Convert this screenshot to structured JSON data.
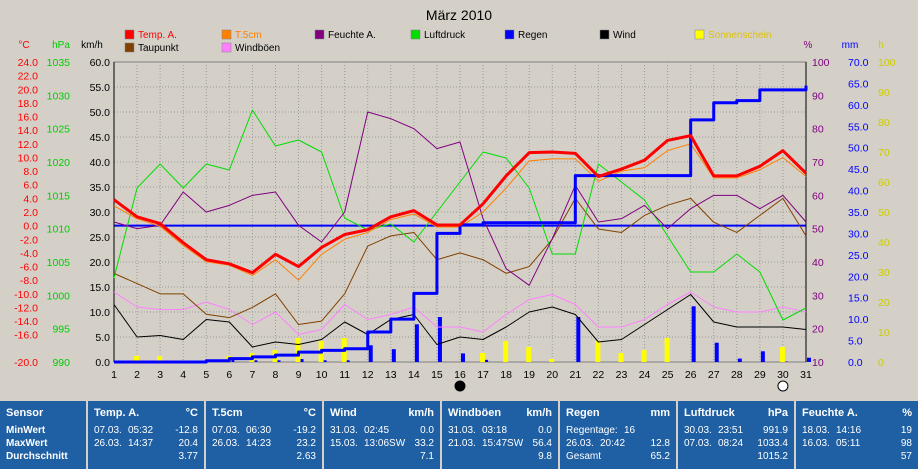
{
  "title": "März 2010",
  "legend": [
    {
      "name": "Temp. A.",
      "color": "#ff0000"
    },
    {
      "name": "T.5cm",
      "color": "#ff8000"
    },
    {
      "name": "Feuchte A.",
      "color": "#800080"
    },
    {
      "name": "Luftdruck",
      "color": "#00dd00"
    },
    {
      "name": "Regen",
      "color": "#0000ff"
    },
    {
      "name": "Wind",
      "color": "#000000"
    },
    {
      "name": "Sonnenschein",
      "color": "#ffff00"
    },
    {
      "name": "Taupunkt",
      "color": "#804000"
    },
    {
      "name": "Windböen",
      "color": "#ff80ff"
    }
  ],
  "axis_units": {
    "temp": "°C",
    "pressure": "hPa",
    "wind": "km/h",
    "humidity": "%",
    "rain": "mm",
    "sun": "h"
  },
  "chart_data": {
    "type": "line",
    "title": "März 2010",
    "x": [
      1,
      2,
      3,
      4,
      5,
      6,
      7,
      8,
      9,
      10,
      11,
      12,
      13,
      14,
      15,
      16,
      17,
      18,
      19,
      20,
      21,
      22,
      23,
      24,
      25,
      26,
      27,
      28,
      29,
      30,
      31
    ],
    "axes": {
      "temp": {
        "label": "°C",
        "ylim": [
          -20,
          24
        ],
        "color": "#ff0000",
        "ticks": [
          "24.0",
          "22.0",
          "20.0",
          "18.0",
          "16.0",
          "14.0",
          "12.0",
          "10.0",
          "8.0",
          "6.0",
          "4.0",
          "2.0",
          "0.0",
          "-2.0",
          "-4.0",
          "-6.0",
          "-8.0",
          "-10.0",
          "-12.0",
          "-14.0",
          "-16.0",
          "",
          "-20.0"
        ]
      },
      "pressure": {
        "label": "hPa",
        "ylim": [
          990,
          1040
        ],
        "color": "#00cc00",
        "ticks": [
          "1035",
          "1030",
          "1025",
          "1020",
          "1015",
          "1010",
          "1005",
          "1000",
          "995",
          "990"
        ]
      },
      "wind": {
        "label": "km/h",
        "ylim": [
          0,
          60
        ],
        "color": "#000000",
        "ticks": [
          "60.0",
          "55.0",
          "50.0",
          "45.0",
          "40.0",
          "35.0",
          "30.0",
          "25.0",
          "20.0",
          "15.0",
          "10.0",
          "5.0",
          "0.0"
        ]
      },
      "humidity": {
        "label": "%",
        "ylim": [
          10,
          100
        ],
        "color": "#800080",
        "ticks": [
          "100",
          "90",
          "80",
          "70",
          "60",
          "50",
          "40",
          "30",
          "20",
          "10"
        ]
      },
      "rain": {
        "label": "mm",
        "ylim": [
          0,
          70
        ],
        "color": "#0000ff",
        "ticks": [
          "70.0",
          "65.0",
          "60.0",
          "55.0",
          "50.0",
          "45.0",
          "40.0",
          "35.0",
          "30.0",
          "25.0",
          "20.0",
          "15.0",
          "10.0",
          "5.0",
          "0.0"
        ]
      },
      "sun": {
        "label": "h",
        "ylim": [
          0,
          100
        ],
        "color": "#cccc00",
        "ticks": [
          "100",
          "90",
          "80",
          "70",
          "60",
          "50",
          "40",
          "30",
          "20",
          "10",
          "0"
        ]
      }
    },
    "series": [
      {
        "name": "Temp. A.",
        "axis": "temp",
        "values": [
          3.8,
          1.3,
          0.3,
          -2.5,
          -5.0,
          -5.6,
          -6.9,
          -4.2,
          -6.0,
          -3.2,
          -1.3,
          -0.6,
          1.3,
          2.2,
          0.1,
          0.1,
          3.2,
          7.3,
          10.7,
          10.8,
          10.6,
          7.2,
          8.3,
          9.6,
          12.5,
          13.2,
          7.3,
          7.3,
          8.7,
          11.0,
          7.7
        ]
      },
      {
        "name": "T.5cm",
        "axis": "temp",
        "values": [
          2.9,
          1.0,
          -0.1,
          -2.9,
          -5.3,
          -5.8,
          -7.3,
          -5.0,
          -8.0,
          -4.2,
          -2.0,
          -1.0,
          0.9,
          1.7,
          -0.2,
          -0.2,
          2.0,
          5.5,
          9.5,
          9.8,
          9.8,
          6.5,
          8.0,
          8.5,
          11.0,
          12.0,
          7.0,
          7.0,
          8.2,
          10.0,
          7.2
        ]
      },
      {
        "name": "Taupunkt",
        "axis": "temp",
        "values": [
          -7.0,
          -8.5,
          -10.0,
          -10.0,
          -13.0,
          -13.5,
          -12.0,
          -10.0,
          -14.5,
          -14.0,
          -10.0,
          -3.0,
          -1.5,
          -1.0,
          -5.0,
          -4.0,
          -5.0,
          -7.0,
          -6.0,
          -2.0,
          4.0,
          -0.5,
          -1.0,
          1.5,
          3.0,
          4.0,
          0.5,
          -1.0,
          1.5,
          4.0,
          -1.5
        ]
      },
      {
        "name": "Luftdruck",
        "axis": "pressure",
        "values": [
          1004,
          1019,
          1023,
          1019,
          1023,
          1022,
          1032,
          1026,
          1027,
          1025,
          1014,
          1012,
          1013,
          1010,
          1015,
          1020,
          1025,
          1024,
          1019,
          1008,
          1008,
          1023,
          1020,
          1017,
          1011,
          1005,
          1005,
          1008,
          1005,
          997,
          999
        ]
      },
      {
        "name": "Feuchte A.",
        "axis": "humidity",
        "values": [
          52,
          50,
          51,
          61,
          55,
          57,
          60,
          61,
          51,
          46,
          55,
          85,
          83,
          80,
          74,
          76,
          53,
          38,
          33,
          47,
          63,
          52,
          53,
          57,
          50,
          56,
          60,
          60,
          56,
          60,
          52
        ]
      },
      {
        "name": "Wind",
        "axis": "wind",
        "values": [
          11.5,
          5.0,
          5.3,
          4.5,
          8.5,
          8.0,
          3.0,
          4.0,
          3.5,
          4.5,
          8.0,
          5.5,
          8.5,
          9.5,
          3.5,
          5.0,
          4.5,
          7.0,
          10.0,
          11.0,
          9.5,
          4.0,
          4.5,
          7.5,
          10.5,
          13.5,
          8.0,
          7.0,
          7.0,
          7.0,
          6.5
        ]
      },
      {
        "name": "Windböen",
        "axis": "wind",
        "values": [
          14.0,
          11.0,
          10.5,
          10.5,
          12.0,
          10.5,
          7.5,
          10.0,
          5.5,
          6.5,
          11.5,
          8.5,
          9.5,
          11.0,
          7.0,
          7.0,
          6.0,
          9.5,
          12.5,
          13.5,
          11.5,
          7.0,
          7.0,
          8.5,
          11.5,
          14.0,
          11.0,
          10.0,
          10.0,
          11.0,
          10.0
        ]
      },
      {
        "name": "Regen",
        "axis": "rain",
        "values": [
          0.0,
          0.0,
          0.0,
          0.0,
          0.3,
          0.8,
          1.2,
          1.6,
          2.3,
          2.7,
          3.1,
          7.0,
          10.0,
          16.0,
          30.0,
          32.0,
          32.5,
          32.5,
          32.5,
          32.5,
          43.5,
          43.5,
          43.5,
          43.5,
          43.5,
          56.5,
          60.5,
          61.0,
          63.5,
          63.5,
          64.5
        ]
      },
      {
        "name": "Regentage",
        "axis": "rain",
        "type": "bar",
        "values": [
          0,
          0,
          0,
          0,
          0.3,
          0.5,
          0.4,
          0.4,
          0.7,
          0.4,
          0.4,
          3.9,
          3.0,
          8.8,
          10.5,
          2.0,
          0.5,
          0,
          0,
          0,
          10.5,
          0,
          0,
          0,
          0,
          13.0,
          4.5,
          0.8,
          2.5,
          0.1,
          1.0
        ]
      },
      {
        "name": "Sonnenschein",
        "axis": "sun",
        "type": "bar",
        "values": [
          0,
          2,
          2,
          0,
          0,
          2,
          3,
          4,
          8,
          7,
          8,
          0,
          0,
          0,
          0,
          0,
          3,
          7,
          5,
          1,
          0,
          7,
          3,
          4,
          8,
          0,
          0,
          0,
          0,
          5,
          0
        ]
      }
    ]
  },
  "markers": {
    "new_moon": "16",
    "full_moon": "30"
  },
  "table": [
    {
      "header": "Sensor",
      "unit": "",
      "rows": [
        {
          "k": "MinWert",
          "d": "",
          "v": ""
        },
        {
          "k": "MaxWert",
          "d": "",
          "v": ""
        },
        {
          "k": "Durchschnitt",
          "d": "",
          "v": ""
        }
      ]
    },
    {
      "header": "Temp. A.",
      "unit": "°C",
      "rows": [
        {
          "k": "07.03.",
          "d": "05:32",
          "v": "-12.8"
        },
        {
          "k": "26.03.",
          "d": "14:37",
          "v": "20.4"
        },
        {
          "k": "",
          "d": "",
          "v": "3.77"
        }
      ]
    },
    {
      "header": "T.5cm",
      "unit": "°C",
      "rows": [
        {
          "k": "07.03.",
          "d": "06:30",
          "v": "-19.2"
        },
        {
          "k": "26.03.",
          "d": "14:23",
          "v": "23.2"
        },
        {
          "k": "",
          "d": "",
          "v": "2.63"
        }
      ]
    },
    {
      "header": "Wind",
      "unit": "km/h",
      "rows": [
        {
          "k": "31.03.",
          "d": "02:45",
          "v": "0.0"
        },
        {
          "k": "15.03.",
          "d": "13:06SW",
          "v": "33.2"
        },
        {
          "k": "",
          "d": "",
          "v": "7.1"
        }
      ]
    },
    {
      "header": "Windböen",
      "unit": "km/h",
      "rows": [
        {
          "k": "31.03.",
          "d": "03:18",
          "v": "0.0"
        },
        {
          "k": "21.03.",
          "d": "15:47SW",
          "v": "56.4"
        },
        {
          "k": "",
          "d": "",
          "v": "9.8"
        }
      ]
    },
    {
      "header": "Regen",
      "unit": "mm",
      "rows": [
        {
          "k": "Regentage:",
          "d": "16",
          "v": ""
        },
        {
          "k": "26.03.",
          "d": "20:42",
          "v": "12.8"
        },
        {
          "k": "Gesamt",
          "d": "",
          "v": "65.2"
        }
      ]
    },
    {
      "header": "Luftdruck",
      "unit": "hPa",
      "rows": [
        {
          "k": "30.03.",
          "d": "23:51",
          "v": "991.9"
        },
        {
          "k": "07.03.",
          "d": "08:24",
          "v": "1033.4"
        },
        {
          "k": "",
          "d": "",
          "v": "1015.2"
        }
      ]
    },
    {
      "header": "Feuchte A.",
      "unit": "%",
      "rows": [
        {
          "k": "18.03.",
          "d": "14:16",
          "v": "19"
        },
        {
          "k": "16.03.",
          "d": "05:11",
          "v": "98"
        },
        {
          "k": "",
          "d": "",
          "v": "57"
        }
      ]
    }
  ]
}
